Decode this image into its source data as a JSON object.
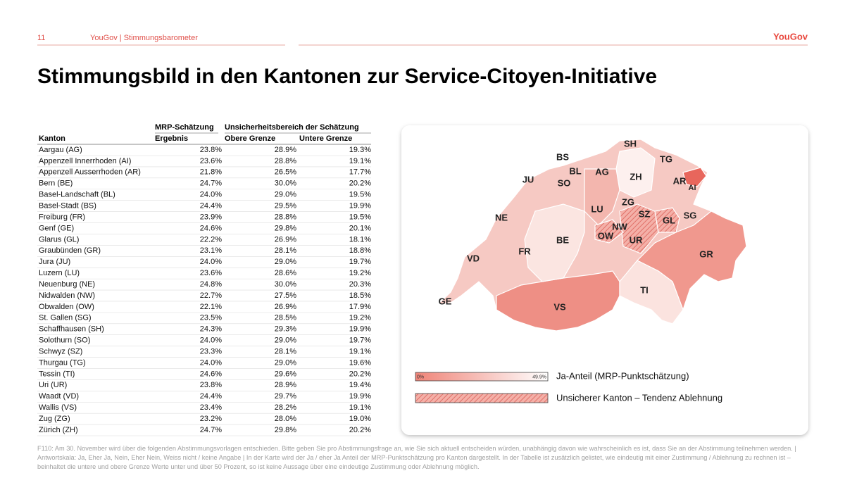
{
  "header": {
    "page": "11",
    "source": "YouGov | Stimmungsbarometer",
    "logo": "YouGov",
    "title": "Stimmungsbild in den Kantonen zur Service-Citoyen-Initiative"
  },
  "table": {
    "group_headers": [
      "MRP-Schätzung",
      "Unsicherheitsbereich der Schätzung"
    ],
    "columns": [
      "Kanton",
      "Ergebnis",
      "Obere Grenze",
      "Untere Grenze"
    ],
    "rows": [
      [
        "Aargau (AG)",
        "23.8%",
        "28.9%",
        "19.3%"
      ],
      [
        "Appenzell Innerrhoden (AI)",
        "23.6%",
        "28.8%",
        "19.1%"
      ],
      [
        "Appenzell Ausserrhoden (AR)",
        "21.8%",
        "26.5%",
        "17.7%"
      ],
      [
        "Bern (BE)",
        "24.7%",
        "30.0%",
        "20.2%"
      ],
      [
        "Basel-Landschaft (BL)",
        "24.0%",
        "29.0%",
        "19.5%"
      ],
      [
        "Basel-Stadt (BS)",
        "24.4%",
        "29.5%",
        "19.9%"
      ],
      [
        "Freiburg (FR)",
        "23.9%",
        "28.8%",
        "19.5%"
      ],
      [
        "Genf (GE)",
        "24.6%",
        "29.8%",
        "20.1%"
      ],
      [
        "Glarus (GL)",
        "22.2%",
        "26.9%",
        "18.1%"
      ],
      [
        "Graubünden (GR)",
        "23.1%",
        "28.1%",
        "18.8%"
      ],
      [
        "Jura (JU)",
        "24.0%",
        "29.0%",
        "19.7%"
      ],
      [
        "Luzern (LU)",
        "23.6%",
        "28.6%",
        "19.2%"
      ],
      [
        "Neuenburg (NE)",
        "24.8%",
        "30.0%",
        "20.3%"
      ],
      [
        "Nidwalden (NW)",
        "22.7%",
        "27.5%",
        "18.5%"
      ],
      [
        "Obwalden (OW)",
        "22.1%",
        "26.9%",
        "17.9%"
      ],
      [
        "St. Gallen (SG)",
        "23.5%",
        "28.5%",
        "19.2%"
      ],
      [
        "Schaffhausen (SH)",
        "24.3%",
        "29.3%",
        "19.9%"
      ],
      [
        "Solothurn (SO)",
        "24.0%",
        "29.0%",
        "19.7%"
      ],
      [
        "Schwyz (SZ)",
        "23.3%",
        "28.1%",
        "19.1%"
      ],
      [
        "Thurgau (TG)",
        "24.0%",
        "29.0%",
        "19.6%"
      ],
      [
        "Tessin (TI)",
        "24.6%",
        "29.6%",
        "20.2%"
      ],
      [
        "Uri (UR)",
        "23.8%",
        "28.9%",
        "19.4%"
      ],
      [
        "Waadt (VD)",
        "24.4%",
        "29.7%",
        "19.9%"
      ],
      [
        "Wallis (VS)",
        "23.4%",
        "28.2%",
        "19.1%"
      ],
      [
        "Zug (ZG)",
        "23.2%",
        "28.0%",
        "19.0%"
      ],
      [
        "Zürich (ZH)",
        "24.7%",
        "29.8%",
        "20.2%"
      ]
    ]
  },
  "map": {
    "labels": [
      "SH",
      "TG",
      "BS",
      "BL",
      "AG",
      "ZH",
      "JU",
      "SO",
      "AR",
      "AI",
      "ZG",
      "LU",
      "SZ",
      "GL",
      "SG",
      "NE",
      "NW",
      "OW",
      "UR",
      "BE",
      "FR",
      "GR",
      "VD",
      "TI",
      "GE",
      "VS"
    ],
    "legend": {
      "min": "0%",
      "max": "49.9%",
      "gradient": "Ja-Anteil (MRP-Punktschätzung)",
      "hatched": "Unsicherer Kanton – Tendenz Ablehnung"
    }
  },
  "footnote": "F110: Am 30. November wird über die folgenden Abstimmungsvorlagen entschieden. Bitte geben Sie pro Abstimmungsfrage an, wie Sie sich aktuell entscheiden würden, unabhängig davon wie wahrscheinlich es ist, dass Sie an der Abstimmung teilnehmen werden. | Antwortskala: Ja, Eher Ja, Nein, Eher Nein, Weiss nicht / keine Angabe | In der Karte wird der Ja / eher Ja Anteil der MRP-Punktschätzung pro Kanton dargestellt. In der Tabelle ist zusätzlich gelistet, wie eindeutig mit einer Zustimmung / Ablehnung zu rechnen ist – beinhaltet die untere und obere Grenze Werte unter und über 50 Prozent, so ist keine Aussage über eine eindeutige Zustimmung oder Ablehnung möglich."
}
